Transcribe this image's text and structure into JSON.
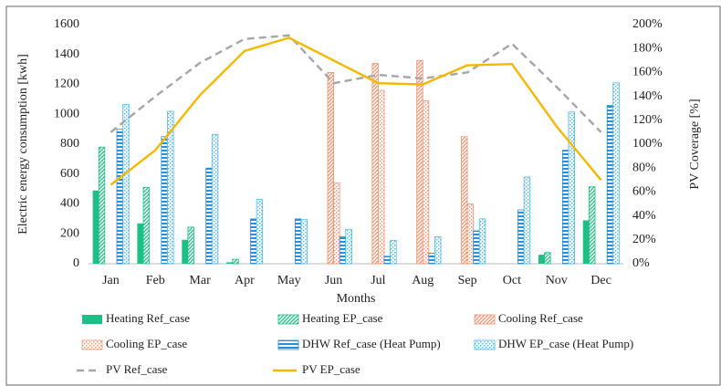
{
  "chart_data": {
    "type": "bar",
    "x_label": "Months",
    "y_label": "Electric energy consumption [kwh]",
    "y2_label": "PV Coverage [%]",
    "categories": [
      "Jan",
      "Feb",
      "Mar",
      "Apr",
      "May",
      "Jun",
      "Jul",
      "Aug",
      "Sep",
      "Oct",
      "Nov",
      "Dec"
    ],
    "ylim": [
      0,
      1600
    ],
    "yticks": [
      0,
      200,
      400,
      600,
      800,
      1000,
      1200,
      1400,
      1600
    ],
    "y2lim": [
      0,
      200
    ],
    "y2ticks": [
      {
        "value": 0,
        "label": "0%"
      },
      {
        "value": 20,
        "label": "20%"
      },
      {
        "value": 40,
        "label": "40%"
      },
      {
        "value": 60,
        "label": "60%"
      },
      {
        "value": 80,
        "label": "80%"
      },
      {
        "value": 100,
        "label": "100%"
      },
      {
        "value": 120,
        "label": "120%"
      },
      {
        "value": 140,
        "label": "140%"
      },
      {
        "value": 160,
        "label": "160%"
      },
      {
        "value": 180,
        "label": "180%"
      },
      {
        "value": 200,
        "label": "200%"
      }
    ],
    "series": [
      {
        "name": "Heating Ref_case",
        "color": "#1dbf86",
        "pattern": "solid",
        "values": [
          490,
          270,
          160,
          10,
          0,
          0,
          0,
          0,
          0,
          0,
          60,
          290
        ]
      },
      {
        "name": "Heating EP_case",
        "color": "#1dbf86",
        "pattern": "diagonal",
        "values": [
          780,
          510,
          245,
          30,
          0,
          0,
          0,
          0,
          0,
          0,
          75,
          515
        ]
      },
      {
        "name": "Cooling Ref_case",
        "color": "#f0926e",
        "pattern": "diagonal",
        "values": [
          0,
          0,
          0,
          0,
          0,
          1280,
          1340,
          1360,
          850,
          0,
          0,
          0
        ]
      },
      {
        "name": "Cooling EP_case",
        "color": "#f0926e",
        "pattern": "dots",
        "values": [
          0,
          0,
          0,
          0,
          0,
          540,
          1160,
          1090,
          400,
          0,
          0,
          0
        ]
      },
      {
        "name": "DHW Ref_case (Heat Pump)",
        "color": "#2a8fd6",
        "pattern": "horizontal",
        "values": [
          900,
          850,
          640,
          300,
          300,
          180,
          50,
          70,
          220,
          360,
          760,
          1060
        ]
      },
      {
        "name": "DHW EP_case (Heat Pump)",
        "color": "#4bb6ec",
        "pattern": "dots",
        "values": [
          1065,
          1020,
          865,
          430,
          295,
          230,
          155,
          180,
          300,
          580,
          1015,
          1210
        ]
      },
      {
        "name": "PV Ref_case",
        "color": "#a6a6a6",
        "type": "line",
        "style": "dashed",
        "axis": "y2",
        "values": [
          110,
          140,
          168,
          188,
          191,
          151,
          158,
          155,
          160,
          184,
          148,
          110
        ]
      },
      {
        "name": "PV EP_case",
        "color": "#f5b800",
        "type": "line",
        "style": "solid",
        "axis": "y2",
        "values": [
          66,
          95,
          141,
          178,
          189,
          170,
          151,
          150,
          166,
          167,
          115,
          70
        ]
      }
    ]
  }
}
